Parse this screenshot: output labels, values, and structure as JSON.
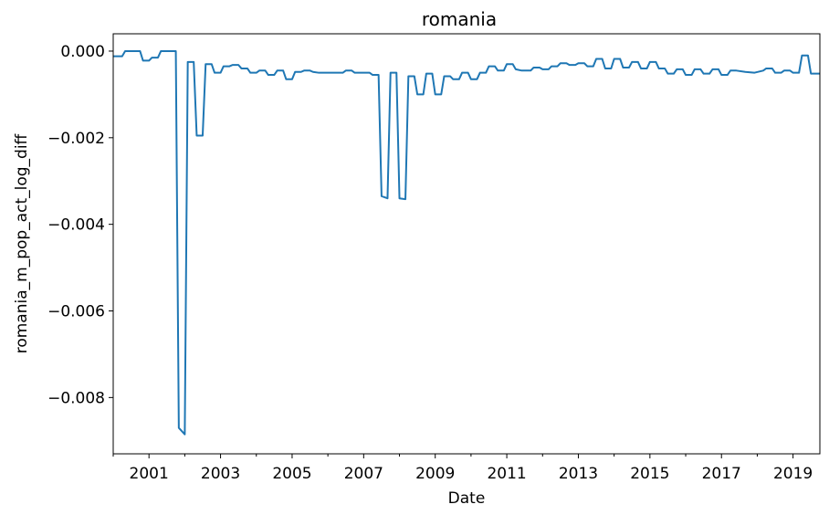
{
  "chart_data": {
    "type": "line",
    "title": "romania",
    "xlabel": "Date",
    "ylabel": "romania_m_pop_act_log_diff",
    "xlim": [
      "2000-01",
      "2019-10"
    ],
    "ylim": [
      -0.0093,
      0.0004
    ],
    "x_ticks": [
      "2001",
      "2003",
      "2005",
      "2007",
      "2009",
      "2011",
      "2013",
      "2015",
      "2017",
      "2019"
    ],
    "y_ticks": [
      {
        "value": 0.0,
        "label": "0.000"
      },
      {
        "value": -0.002,
        "label": "−0.002"
      },
      {
        "value": -0.004,
        "label": "−0.004"
      },
      {
        "value": -0.006,
        "label": "−0.006"
      },
      {
        "value": -0.008,
        "label": "−0.008"
      }
    ],
    "grid": false,
    "series": [
      {
        "color": "#1f77b4",
        "points": [
          [
            "2000-01",
            -0.00012
          ],
          [
            "2000-04",
            -0.00012
          ],
          [
            "2000-05",
            0.0
          ],
          [
            "2000-10",
            0.0
          ],
          [
            "2000-11",
            -0.00022
          ],
          [
            "2001-01",
            -0.00022
          ],
          [
            "2001-02",
            -0.00015
          ],
          [
            "2001-04",
            -0.00015
          ],
          [
            "2001-05",
            0.0
          ],
          [
            "2001-10",
            0.0
          ],
          [
            "2001-11",
            -0.0087
          ],
          [
            "2002-01",
            -0.00885
          ],
          [
            "2002-02",
            -0.00025
          ],
          [
            "2002-04",
            -0.00025
          ],
          [
            "2002-05",
            -0.00195
          ],
          [
            "2002-07",
            -0.00195
          ],
          [
            "2002-08",
            -0.0003
          ],
          [
            "2002-10",
            -0.0003
          ],
          [
            "2002-11",
            -0.0005
          ],
          [
            "2003-01",
            -0.0005
          ],
          [
            "2003-02",
            -0.00035
          ],
          [
            "2003-04",
            -0.00035
          ],
          [
            "2003-05",
            -0.00032
          ],
          [
            "2003-07",
            -0.00032
          ],
          [
            "2003-08",
            -0.0004
          ],
          [
            "2003-10",
            -0.0004
          ],
          [
            "2003-11",
            -0.0005
          ],
          [
            "2004-01",
            -0.0005
          ],
          [
            "2004-02",
            -0.00045
          ],
          [
            "2004-04",
            -0.00045
          ],
          [
            "2004-05",
            -0.00055
          ],
          [
            "2004-07",
            -0.00055
          ],
          [
            "2004-08",
            -0.00045
          ],
          [
            "2004-10",
            -0.00045
          ],
          [
            "2004-11",
            -0.00065
          ],
          [
            "2005-01",
            -0.00065
          ],
          [
            "2005-02",
            -0.00048
          ],
          [
            "2005-04",
            -0.00048
          ],
          [
            "2005-05",
            -0.00045
          ],
          [
            "2005-07",
            -0.00045
          ],
          [
            "2005-08",
            -0.00048
          ],
          [
            "2005-10",
            -0.0005
          ],
          [
            "2006-06",
            -0.0005
          ],
          [
            "2006-07",
            -0.00045
          ],
          [
            "2006-09",
            -0.00045
          ],
          [
            "2006-10",
            -0.0005
          ],
          [
            "2007-03",
            -0.0005
          ],
          [
            "2007-04",
            -0.00055
          ],
          [
            "2007-06",
            -0.00055
          ],
          [
            "2007-07",
            -0.00335
          ],
          [
            "2007-09",
            -0.0034
          ],
          [
            "2007-10",
            -0.0005
          ],
          [
            "2007-12",
            -0.0005
          ],
          [
            "2008-01",
            -0.0034
          ],
          [
            "2008-03",
            -0.00342
          ],
          [
            "2008-04",
            -0.00058
          ],
          [
            "2008-06",
            -0.00058
          ],
          [
            "2008-07",
            -0.001
          ],
          [
            "2008-09",
            -0.001
          ],
          [
            "2008-10",
            -0.00052
          ],
          [
            "2008-12",
            -0.00052
          ],
          [
            "2009-01",
            -0.001
          ],
          [
            "2009-03",
            -0.001
          ],
          [
            "2009-04",
            -0.00058
          ],
          [
            "2009-06",
            -0.00058
          ],
          [
            "2009-07",
            -0.00065
          ],
          [
            "2009-09",
            -0.00065
          ],
          [
            "2009-10",
            -0.0005
          ],
          [
            "2009-12",
            -0.0005
          ],
          [
            "2010-01",
            -0.00065
          ],
          [
            "2010-03",
            -0.00065
          ],
          [
            "2010-04",
            -0.0005
          ],
          [
            "2010-06",
            -0.0005
          ],
          [
            "2010-07",
            -0.00035
          ],
          [
            "2010-09",
            -0.00035
          ],
          [
            "2010-10",
            -0.00045
          ],
          [
            "2010-12",
            -0.00045
          ],
          [
            "2011-01",
            -0.0003
          ],
          [
            "2011-03",
            -0.0003
          ],
          [
            "2011-04",
            -0.00042
          ],
          [
            "2011-06",
            -0.00045
          ],
          [
            "2011-07",
            -0.00045
          ],
          [
            "2011-09",
            -0.00045
          ],
          [
            "2011-10",
            -0.00038
          ],
          [
            "2011-12",
            -0.00038
          ],
          [
            "2012-01",
            -0.00042
          ],
          [
            "2012-03",
            -0.00042
          ],
          [
            "2012-04",
            -0.00035
          ],
          [
            "2012-06",
            -0.00035
          ],
          [
            "2012-07",
            -0.00028
          ],
          [
            "2012-09",
            -0.00028
          ],
          [
            "2012-10",
            -0.00032
          ],
          [
            "2012-12",
            -0.00032
          ],
          [
            "2013-01",
            -0.00028
          ],
          [
            "2013-03",
            -0.00028
          ],
          [
            "2013-04",
            -0.00035
          ],
          [
            "2013-06",
            -0.00035
          ],
          [
            "2013-07",
            -0.00018
          ],
          [
            "2013-09",
            -0.00018
          ],
          [
            "2013-10",
            -0.0004
          ],
          [
            "2013-12",
            -0.0004
          ],
          [
            "2014-01",
            -0.00018
          ],
          [
            "2014-03",
            -0.00018
          ],
          [
            "2014-04",
            -0.00038
          ],
          [
            "2014-06",
            -0.00038
          ],
          [
            "2014-07",
            -0.00025
          ],
          [
            "2014-09",
            -0.00025
          ],
          [
            "2014-10",
            -0.0004
          ],
          [
            "2014-12",
            -0.0004
          ],
          [
            "2015-01",
            -0.00025
          ],
          [
            "2015-03",
            -0.00025
          ],
          [
            "2015-04",
            -0.0004
          ],
          [
            "2015-06",
            -0.0004
          ],
          [
            "2015-07",
            -0.00052
          ],
          [
            "2015-09",
            -0.00052
          ],
          [
            "2015-10",
            -0.00042
          ],
          [
            "2015-12",
            -0.00042
          ],
          [
            "2016-01",
            -0.00055
          ],
          [
            "2016-03",
            -0.00055
          ],
          [
            "2016-04",
            -0.00042
          ],
          [
            "2016-06",
            -0.00042
          ],
          [
            "2016-07",
            -0.00052
          ],
          [
            "2016-09",
            -0.00052
          ],
          [
            "2016-10",
            -0.00042
          ],
          [
            "2016-12",
            -0.00042
          ],
          [
            "2017-01",
            -0.00055
          ],
          [
            "2017-03",
            -0.00055
          ],
          [
            "2017-04",
            -0.00045
          ],
          [
            "2017-06",
            -0.00045
          ],
          [
            "2017-09",
            -0.00048
          ],
          [
            "2017-12",
            -0.0005
          ],
          [
            "2018-03",
            -0.00045
          ],
          [
            "2018-04",
            -0.0004
          ],
          [
            "2018-06",
            -0.0004
          ],
          [
            "2018-07",
            -0.0005
          ],
          [
            "2018-09",
            -0.0005
          ],
          [
            "2018-10",
            -0.00045
          ],
          [
            "2018-12",
            -0.00045
          ],
          [
            "2019-01",
            -0.0005
          ],
          [
            "2019-03",
            -0.0005
          ],
          [
            "2019-04",
            -0.0001
          ],
          [
            "2019-06",
            -0.0001
          ],
          [
            "2019-07",
            -0.00052
          ],
          [
            "2019-10",
            -0.00052
          ]
        ]
      }
    ]
  }
}
